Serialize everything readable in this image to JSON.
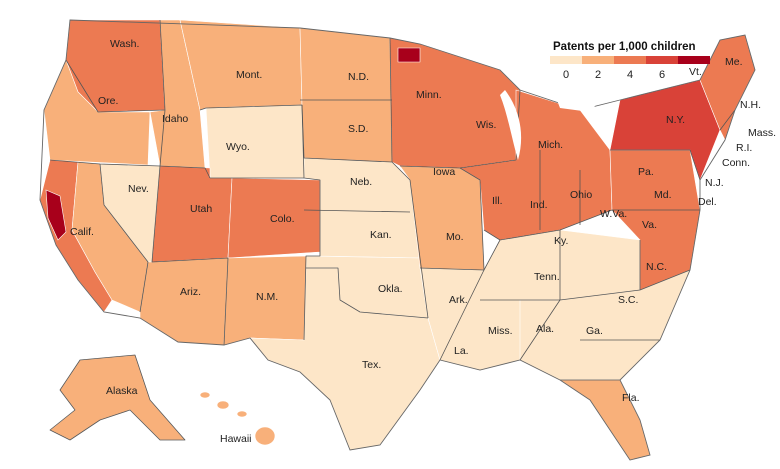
{
  "legend": {
    "title": "Patents per 1,000 children",
    "ticks": [
      "0",
      "2",
      "4",
      "6"
    ],
    "colors": [
      "#fde6c8",
      "#f8b07a",
      "#ec7a52",
      "#d94238",
      "#a8001b"
    ],
    "no_data_color": "#cfcfcf"
  },
  "states": {
    "wash": "Wash.",
    "ore": "Ore.",
    "calif": "Calif.",
    "nev": "Nev.",
    "idaho": "Idaho",
    "mont": "Mont.",
    "wyo": "Wyo.",
    "utah": "Utah",
    "colo": "Colo.",
    "ariz": "Ariz.",
    "nm": "N.M.",
    "nd": "N.D.",
    "sd": "S.D.",
    "neb": "Neb.",
    "kan": "Kan.",
    "okla": "Okla.",
    "tex": "Tex.",
    "minn": "Minn.",
    "iowa": "Iowa",
    "mo": "Mo.",
    "ark": "Ark.",
    "la": "La.",
    "wis": "Wis.",
    "ill": "Ill.",
    "mich": "Mich.",
    "ind": "Ind.",
    "ohio": "Ohio",
    "ky": "Ky.",
    "tenn": "Tenn.",
    "miss": "Miss.",
    "ala": "Ala.",
    "ga": "Ga.",
    "fla": "Fla.",
    "sc": "S.C.",
    "nc": "N.C.",
    "va": "Va.",
    "wva": "W.Va.",
    "pa": "Pa.",
    "ny": "N.Y.",
    "md": "Md.",
    "del": "Del.",
    "nj": "N.J.",
    "conn": "Conn.",
    "ri": "R.I.",
    "mass": "Mass.",
    "vt": "Vt.",
    "nh": "N.H.",
    "me": "Me.",
    "alaska": "Alaska",
    "hawaii": "Hawaii"
  },
  "regions": [
    {
      "id": "pacific-nw",
      "level": 3
    },
    {
      "id": "oregon",
      "level": 2
    },
    {
      "id": "california-coast",
      "level": 3
    },
    {
      "id": "bay-area",
      "level": 5
    },
    {
      "id": "california-inland",
      "level": 2
    },
    {
      "id": "nevada",
      "level": 1
    },
    {
      "id": "idaho",
      "level": 2
    },
    {
      "id": "montana",
      "level": 2
    },
    {
      "id": "wyoming",
      "level": 1
    },
    {
      "id": "utah",
      "level": 3
    },
    {
      "id": "colorado",
      "level": 3
    },
    {
      "id": "arizona",
      "level": 2
    },
    {
      "id": "new-mexico",
      "level": 2
    },
    {
      "id": "dakotas",
      "level": 2
    },
    {
      "id": "nebraska-kansas",
      "level": 1
    },
    {
      "id": "oklahoma",
      "level": 1
    },
    {
      "id": "texas",
      "level": 1
    },
    {
      "id": "upper-midwest",
      "level": 3
    },
    {
      "id": "twin-cities",
      "level": 5
    },
    {
      "id": "iowa-mo",
      "level": 2
    },
    {
      "id": "great-lakes",
      "level": 3
    },
    {
      "id": "lower-south",
      "level": 1
    },
    {
      "id": "southeast",
      "level": 1
    },
    {
      "id": "florida",
      "level": 2
    },
    {
      "id": "mid-atlantic",
      "level": 3
    },
    {
      "id": "northeast",
      "level": 4
    },
    {
      "id": "new-england",
      "level": 3
    },
    {
      "id": "alaska",
      "level": 2
    },
    {
      "id": "hawaii",
      "level": 2
    }
  ]
}
